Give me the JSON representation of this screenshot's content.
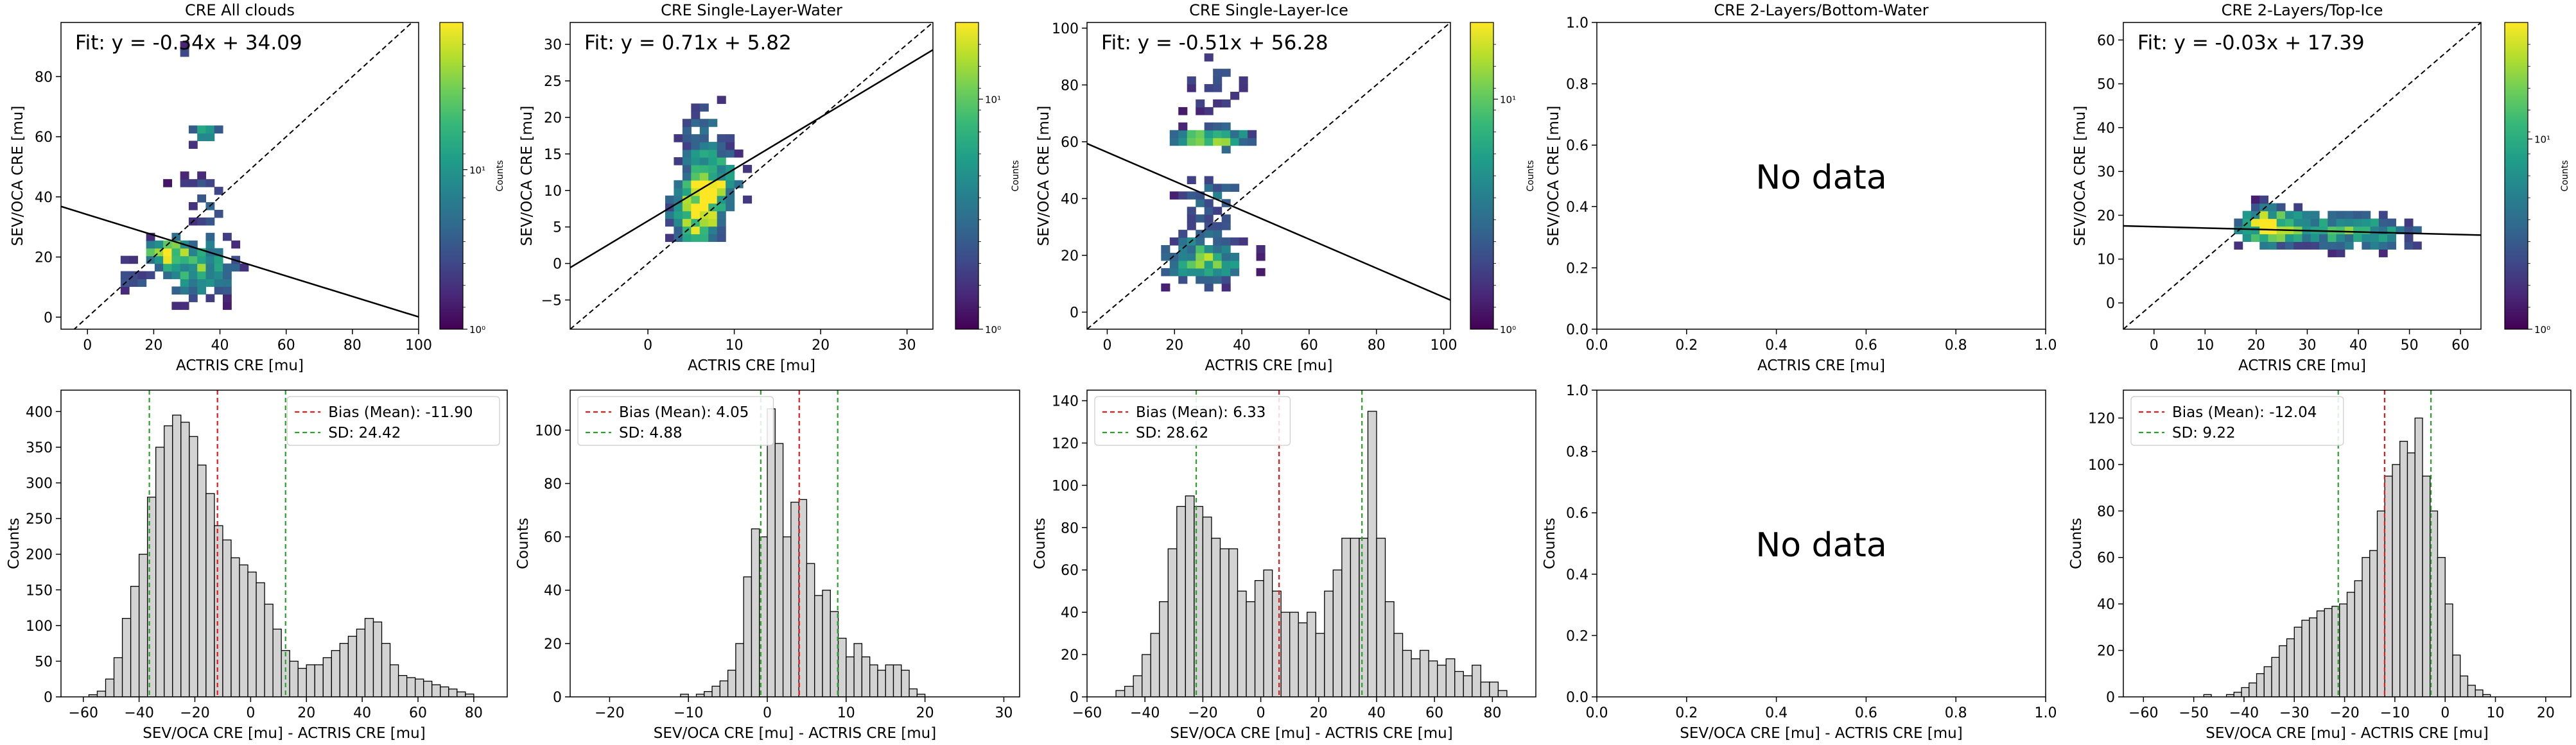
{
  "chart_data": [
    {
      "type": "heatmap",
      "title": "CRE All clouds",
      "xlabel": "ACTRIS CRE [mu]",
      "ylabel": "SEV/OCA CRE [mu]",
      "xlim": [
        -8,
        100
      ],
      "ylim": [
        -4,
        98
      ],
      "xticks": [
        0,
        20,
        40,
        60,
        80,
        100
      ],
      "yticks": [
        0,
        20,
        40,
        60,
        80
      ],
      "fit_text": "Fit: y = -0.34x + 34.09",
      "fit": {
        "slope": -0.34,
        "intercept": 34.09
      },
      "colorbar_label": "Counts",
      "colorbar_ticks": [
        "10⁰",
        "10¹"
      ],
      "colorbar_tick_fracs": [
        0.0,
        0.52
      ],
      "cells": {
        "xrange": [
          10,
          58
        ],
        "yrange": [
          0,
          92
        ],
        "seed": 11,
        "blobs": [
          {
            "x": 22,
            "y": 20,
            "sx": 4,
            "sy": 3,
            "w": 1.0
          },
          {
            "x": 32,
            "y": 14,
            "sx": 8,
            "sy": 7,
            "w": 0.75
          },
          {
            "x": 33,
            "y": 60,
            "sx": 5,
            "sy": 2,
            "w": 0.65
          },
          {
            "x": 28,
            "y": 84,
            "sx": 6,
            "sy": 5,
            "w": 0.28
          },
          {
            "x": 35,
            "y": 38,
            "sx": 8,
            "sy": 10,
            "w": 0.3
          },
          {
            "x": 12,
            "y": 12,
            "sx": 3,
            "sy": 5,
            "w": 0.35
          }
        ]
      }
    },
    {
      "type": "heatmap",
      "title": "CRE Single-Layer-Water",
      "xlabel": "ACTRIS CRE [mu]",
      "ylabel": "SEV/OCA CRE [mu]",
      "xlim": [
        -9,
        33
      ],
      "ylim": [
        -9,
        33
      ],
      "xticks": [
        0,
        10,
        20,
        30
      ],
      "yticks": [
        -5,
        0,
        5,
        10,
        15,
        20,
        25,
        30
      ],
      "fit_text": "Fit: y = 0.71x + 5.82",
      "fit": {
        "slope": 0.71,
        "intercept": 5.82
      },
      "colorbar_label": "Counts",
      "colorbar_ticks": [
        "10⁰",
        "10¹"
      ],
      "colorbar_tick_fracs": [
        0.0,
        0.75
      ],
      "cells": {
        "xrange": [
          2,
          12
        ],
        "yrange": [
          3,
          24
        ],
        "seed": 23,
        "blobs": [
          {
            "x": 5,
            "y": 6,
            "sx": 2,
            "sy": 3,
            "w": 1.0
          },
          {
            "x": 7,
            "y": 10,
            "sx": 2.5,
            "sy": 3,
            "w": 0.8
          },
          {
            "x": 6,
            "y": 17,
            "sx": 2,
            "sy": 4,
            "w": 0.45
          }
        ]
      }
    },
    {
      "type": "heatmap",
      "title": "CRE Single-Layer-Ice",
      "xlabel": "ACTRIS CRE [mu]",
      "ylabel": "SEV/OCA CRE [mu]",
      "xlim": [
        -6,
        102
      ],
      "ylim": [
        -6,
        102
      ],
      "xticks": [
        0,
        20,
        40,
        60,
        80,
        100
      ],
      "yticks": [
        0,
        20,
        40,
        60,
        80,
        100
      ],
      "fit_text": "Fit: y = -0.51x + 56.28",
      "fit": {
        "slope": -0.51,
        "intercept": 56.28
      },
      "colorbar_label": "Counts",
      "colorbar_ticks": [
        "10⁰",
        "10¹"
      ],
      "colorbar_tick_fracs": [
        0.0,
        0.75
      ],
      "cells": {
        "xrange": [
          16,
          56
        ],
        "yrange": [
          2,
          92
        ],
        "seed": 37,
        "blobs": [
          {
            "x": 30,
            "y": 60,
            "sx": 8,
            "sy": 2.5,
            "w": 1.0
          },
          {
            "x": 28,
            "y": 17,
            "sx": 9,
            "sy": 6,
            "w": 0.8
          },
          {
            "x": 30,
            "y": 40,
            "sx": 7,
            "sy": 9,
            "w": 0.4
          },
          {
            "x": 30,
            "y": 78,
            "sx": 7,
            "sy": 8,
            "w": 0.35
          }
        ]
      }
    },
    {
      "type": "heatmap",
      "title": "CRE 2-Layers/Bottom-Water",
      "xlabel": "ACTRIS CRE [mu]",
      "ylabel": "SEV/OCA CRE [mu]",
      "xlim": [
        0,
        1
      ],
      "ylim": [
        0,
        1
      ],
      "xticks": [
        0.0,
        0.2,
        0.4,
        0.6,
        0.8,
        1.0
      ],
      "yticks": [
        0.0,
        0.2,
        0.4,
        0.6,
        0.8,
        1.0
      ],
      "tick_format": "fixed1",
      "no_data_text": "No data"
    },
    {
      "type": "heatmap",
      "title": "CRE 2-Layers/Top-Ice",
      "xlabel": "ACTRIS CRE [mu]",
      "ylabel": "SEV/OCA CRE [mu]",
      "xlim": [
        -6,
        64
      ],
      "ylim": [
        -6,
        64
      ],
      "xticks": [
        0,
        10,
        20,
        30,
        40,
        50,
        60
      ],
      "yticks": [
        0,
        10,
        20,
        30,
        40,
        50,
        60
      ],
      "fit_text": "Fit: y = -0.03x + 17.39",
      "fit": {
        "slope": -0.03,
        "intercept": 17.39
      },
      "colorbar_label": "Counts",
      "colorbar_ticks": [
        "10⁰",
        "10¹"
      ],
      "colorbar_tick_fracs": [
        0.0,
        0.62
      ],
      "cells": {
        "xrange": [
          14,
          54
        ],
        "yrange": [
          7,
          31
        ],
        "seed": 51,
        "blobs": [
          {
            "x": 21,
            "y": 17,
            "sx": 4,
            "sy": 3,
            "w": 1.0
          },
          {
            "x": 33,
            "y": 16,
            "sx": 8,
            "sy": 3,
            "w": 0.65
          },
          {
            "x": 45,
            "y": 15,
            "sx": 6,
            "sy": 3,
            "w": 0.4
          }
        ]
      }
    },
    {
      "type": "bar",
      "xlabel": "SEV/OCA CRE [mu] - ACTRIS CRE [mu]",
      "ylabel": "Counts",
      "xlim": [
        -68,
        92
      ],
      "ylim": [
        0,
        430
      ],
      "xticks": [
        -60,
        -40,
        -20,
        0,
        20,
        40,
        60,
        80
      ],
      "yticks": [
        0,
        50,
        100,
        150,
        200,
        250,
        300,
        350,
        400
      ],
      "bin_start": -58,
      "bin_width": 3,
      "values": [
        3,
        8,
        25,
        55,
        110,
        155,
        200,
        280,
        350,
        380,
        395,
        385,
        365,
        325,
        285,
        240,
        220,
        195,
        185,
        175,
        160,
        130,
        95,
        65,
        50,
        40,
        45,
        45,
        55,
        65,
        75,
        85,
        95,
        110,
        105,
        75,
        45,
        30,
        27,
        25,
        22,
        17,
        14,
        11,
        7,
        4
      ],
      "mean": -11.9,
      "sd": 24.42,
      "legend": [
        "Bias (Mean): -11.90",
        "SD: 24.42"
      ],
      "legend_pos": "top-right"
    },
    {
      "type": "bar",
      "xlabel": "SEV/OCA CRE [mu] - ACTRIS CRE [mu]",
      "ylabel": "Counts",
      "xlim": [
        -25,
        32
      ],
      "ylim": [
        0,
        115
      ],
      "xticks": [
        -20,
        -10,
        0,
        10,
        20,
        30
      ],
      "yticks": [
        0,
        20,
        40,
        60,
        80,
        100
      ],
      "bin_start": -11,
      "bin_width": 1,
      "values": [
        1,
        0,
        1,
        2,
        4,
        6,
        10,
        20,
        45,
        63,
        60,
        108,
        95,
        60,
        73,
        74,
        50,
        38,
        40,
        32,
        22,
        15,
        20,
        15,
        12,
        10,
        12,
        12,
        10,
        3,
        1
      ],
      "mean": 4.05,
      "sd": 4.88,
      "legend": [
        "Bias (Mean): 4.05",
        "SD: 4.88"
      ],
      "legend_pos": "top-left"
    },
    {
      "type": "bar",
      "xlabel": "SEV/OCA CRE [mu] - ACTRIS CRE [mu]",
      "ylabel": "Counts",
      "xlim": [
        -60,
        95
      ],
      "ylim": [
        0,
        145
      ],
      "xticks": [
        -60,
        -40,
        -20,
        0,
        20,
        40,
        60,
        80
      ],
      "yticks": [
        0,
        20,
        40,
        60,
        80,
        100,
        120,
        140
      ],
      "bin_start": -50,
      "bin_width": 3,
      "values": [
        3,
        5,
        10,
        20,
        30,
        45,
        70,
        90,
        95,
        90,
        85,
        75,
        70,
        70,
        50,
        45,
        55,
        60,
        50,
        40,
        40,
        35,
        40,
        30,
        50,
        60,
        75,
        75,
        75,
        135,
        75,
        45,
        30,
        22,
        18,
        22,
        17,
        15,
        18,
        12,
        10,
        15,
        7,
        7,
        3
      ],
      "mean": 6.33,
      "sd": 28.62,
      "legend": [
        "Bias (Mean): 6.33",
        "SD: 28.62"
      ],
      "legend_pos": "top-left"
    },
    {
      "type": "bar",
      "xlabel": "SEV/OCA CRE [mu] - ACTRIS CRE [mu]",
      "ylabel": "Counts",
      "xlim": [
        0,
        1
      ],
      "ylim": [
        0,
        1
      ],
      "xticks": [
        0.0,
        0.2,
        0.4,
        0.6,
        0.8,
        1.0
      ],
      "yticks": [
        0.0,
        0.2,
        0.4,
        0.6,
        0.8,
        1.0
      ],
      "tick_format": "fixed1",
      "no_data_text": "No data"
    },
    {
      "type": "bar",
      "xlabel": "SEV/OCA CRE [mu] - ACTRIS CRE [mu]",
      "ylabel": "Counts",
      "xlim": [
        -64,
        25
      ],
      "ylim": [
        0,
        132
      ],
      "xticks": [
        -60,
        -50,
        -40,
        -30,
        -20,
        -10,
        0,
        10,
        20
      ],
      "yticks": [
        0,
        20,
        40,
        60,
        80,
        100,
        120
      ],
      "bin_start": -48,
      "bin_width": 1.5,
      "values": [
        1,
        0,
        0,
        1,
        2,
        4,
        6,
        10,
        13,
        17,
        22,
        25,
        30,
        33,
        34,
        37,
        38,
        39,
        40,
        45,
        50,
        60,
        63,
        80,
        95,
        100,
        110,
        105,
        120,
        95,
        80,
        60,
        40,
        18,
        9,
        5,
        3,
        1
      ],
      "mean": -12.04,
      "sd": 9.22,
      "legend": [
        "Bias (Mean): -12.04",
        "SD: 9.22"
      ],
      "legend_pos": "top-left"
    }
  ]
}
